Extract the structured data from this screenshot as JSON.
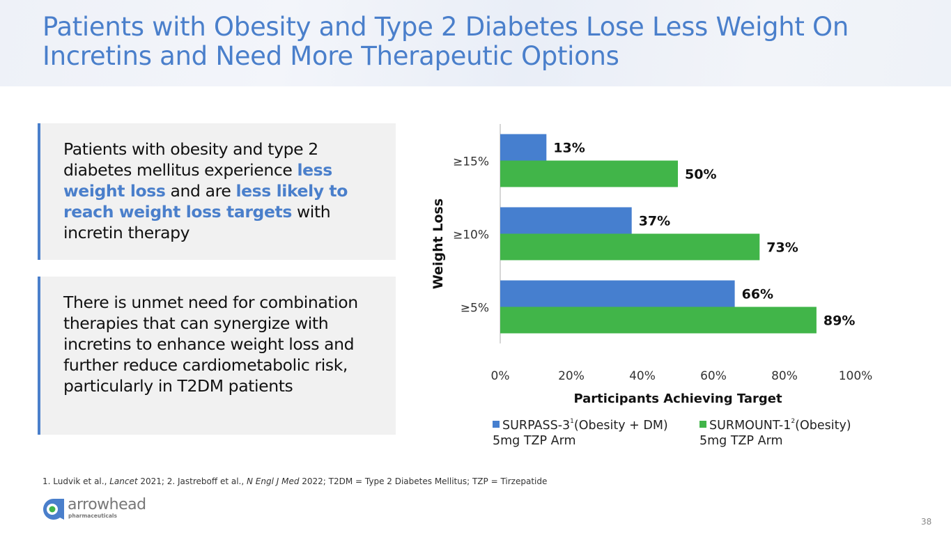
{
  "page": {
    "title_line1": "Patients with Obesity and Type 2 Diabetes Lose Less Weight On",
    "title_line2": "Incretins and Need More Therapeutic Options",
    "page_number": "38"
  },
  "callouts": [
    {
      "segments": [
        {
          "text": "Patients with obesity and type 2 diabetes mellitus experience ",
          "highlight": false
        },
        {
          "text": "less weight loss",
          "highlight": true
        },
        {
          "text": " and are ",
          "highlight": false
        },
        {
          "text": "less likely to reach weight loss targets",
          "highlight": true
        },
        {
          "text": " with incretin therapy",
          "highlight": false
        }
      ]
    },
    {
      "segments": [
        {
          "text": "There is unmet need for combination therapies that can synergize with incretins to enhance weight loss and further reduce cardiometabolic risk, particularly in T2DM patients",
          "highlight": false
        }
      ]
    }
  ],
  "footnote": {
    "p1": "1. Ludvik et al., ",
    "i1": "Lancet",
    "p2": " 2021; 2. Jastreboff et al., ",
    "i2": "N Engl J Med",
    "p3": " 2022; T2DM = Type 2 Diabetes Mellitus; TZP = Tirzepatide"
  },
  "logo": {
    "name": "arrowhead",
    "subtitle": "pharmaceuticals"
  },
  "colors": {
    "accent": "#4a7fcb",
    "series1": "#467fcf",
    "series2": "#41b549",
    "callout_bg": "#f1f1f1"
  },
  "chart_data": {
    "type": "bar",
    "orientation": "horizontal",
    "title": "",
    "xlabel": "Participants Achieving Target",
    "ylabel": "Weight Loss",
    "categories": [
      "≥15%",
      "≥10%",
      "≥5%"
    ],
    "series": [
      {
        "name": "SURPASS-3 (Obesity + DM) 5mg TZP Arm",
        "legend_main": "SURPASS-3",
        "legend_sup": "1",
        "legend_rest": "(Obesity + DM)",
        "legend_line2": "5mg TZP Arm",
        "color": "#467fcf",
        "values": [
          13,
          37,
          66
        ]
      },
      {
        "name": "SURMOUNT-1 (Obesity) 5mg TZP Arm",
        "legend_main": "SURMOUNT-1",
        "legend_sup": "2",
        "legend_rest": "(Obesity)",
        "legend_line2": "5mg TZP Arm",
        "color": "#41b549",
        "values": [
          50,
          73,
          89
        ]
      }
    ],
    "xlim": [
      0,
      100
    ],
    "xticks": [
      0,
      20,
      40,
      60,
      80,
      100
    ],
    "xtick_labels": [
      "0%",
      "20%",
      "40%",
      "60%",
      "80%",
      "100%"
    ],
    "data_label_suffix": "%",
    "grid": false,
    "legend_position": "bottom"
  }
}
